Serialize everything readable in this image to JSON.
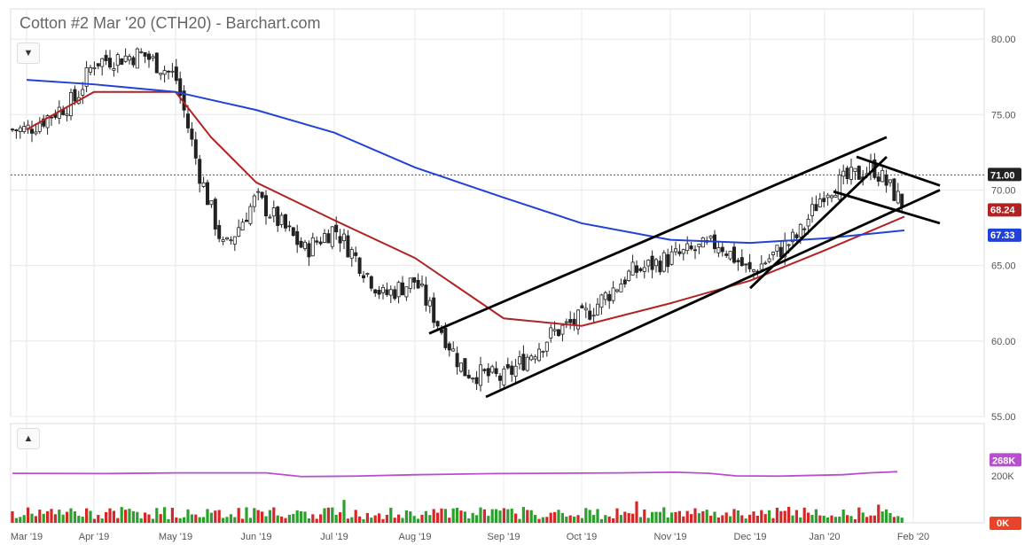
{
  "title": "Cotton #2 Mar '20 (CTH20) - Barchart.com",
  "colors": {
    "up": "#2ca02c",
    "down": "#d62728",
    "wick": "#222222",
    "ma_fast": "#b22222",
    "ma_slow": "#2142d6",
    "volume_avg": "#b84ecf",
    "grid": "#e8e8e8",
    "axis_text": "#555555"
  },
  "icons": {
    "main_toggle": "chevron-down-icon",
    "volume_toggle": "chevron-up-icon"
  },
  "chart_data": {
    "type": "candlestick",
    "symbol": "CTH20",
    "x_axis": {
      "labels": [
        "Mar '19",
        "Apr '19",
        "May '19",
        "Jun '19",
        "Jul '19",
        "Aug '19",
        "Sep '19",
        "Oct '19",
        "Nov '19",
        "Dec '19",
        "Jan '20",
        "Feb '20"
      ]
    },
    "y_axis": {
      "ticks": [
        "80.00",
        "75.00",
        "70.00",
        "65.00",
        "60.00",
        "55.00"
      ],
      "range": [
        55,
        82
      ]
    },
    "last_price": {
      "value": "71.00"
    },
    "price_key_points": [
      [
        "Mar '19",
        74.0
      ],
      [
        "Mar '19",
        76.0
      ],
      [
        "Apr '19",
        78.5
      ],
      [
        "Apr '19",
        79.0
      ],
      [
        "May '19",
        77.5
      ],
      [
        "May '19",
        71.0
      ],
      [
        "May '19",
        66.0
      ],
      [
        "Jun '19",
        69.5
      ],
      [
        "Jun '19",
        66.0
      ],
      [
        "Jul '19",
        67.5
      ],
      [
        "Jul '19",
        63.0
      ],
      [
        "Aug '19",
        64.0
      ],
      [
        "Aug '19",
        58.0
      ],
      [
        "Sep '19",
        57.5
      ],
      [
        "Sep '19",
        60.5
      ],
      [
        "Oct '19",
        61.5
      ],
      [
        "Oct '19",
        64.5
      ],
      [
        "Nov '19",
        65.5
      ],
      [
        "Nov '19",
        66.5
      ],
      [
        "Dec '19",
        64.5
      ],
      [
        "Dec '19",
        67.0
      ],
      [
        "Jan '20",
        70.0
      ],
      [
        "Jan '20",
        71.5
      ],
      [
        "Feb '20",
        68.2
      ]
    ],
    "series": [
      {
        "label": "68.24",
        "color": "#b22222",
        "points": [
          [
            "Mar '19",
            74.0
          ],
          [
            "Apr '19",
            76.5
          ],
          [
            "May '19",
            76.5
          ],
          [
            "May '19",
            73.5
          ],
          [
            "Jun '19",
            70.5
          ],
          [
            "Jul '19",
            68.0
          ],
          [
            "Aug '19",
            65.5
          ],
          [
            "Sep '19",
            61.5
          ],
          [
            "Oct '19",
            61.0
          ],
          [
            "Nov '19",
            62.5
          ],
          [
            "Dec '19",
            64.0
          ],
          [
            "Jan '20",
            66.0
          ],
          [
            "Feb '20",
            68.24
          ]
        ]
      },
      {
        "label": "67.33",
        "color": "#2142d6",
        "points": [
          [
            "Mar '19",
            77.3
          ],
          [
            "Apr '19",
            77.0
          ],
          [
            "May '19",
            76.5
          ],
          [
            "Jun '19",
            75.3
          ],
          [
            "Jul '19",
            73.8
          ],
          [
            "Aug '19",
            71.5
          ],
          [
            "Sep '19",
            69.5
          ],
          [
            "Oct '19",
            67.8
          ],
          [
            "Nov '19",
            66.7
          ],
          [
            "Dec '19",
            66.5
          ],
          [
            "Jan '20",
            66.8
          ],
          [
            "Feb '20",
            67.33
          ]
        ]
      }
    ],
    "trendlines": [
      [
        [
          "Aug '19",
          60.5
        ],
        [
          "Jan '20",
          73.5
        ]
      ],
      [
        [
          "Sep '19",
          56.3
        ],
        [
          "Feb '20",
          70.0
        ]
      ],
      [
        [
          "Dec '19",
          63.5
        ],
        [
          "Jan '20",
          72.2
        ]
      ],
      [
        [
          "Jan '20",
          72.2
        ],
        [
          "Feb '20",
          70.3
        ]
      ],
      [
        [
          "Jan '20",
          69.9
        ],
        [
          "Feb '20",
          67.8
        ]
      ]
    ],
    "volume": {
      "axis_labels": [
        "200K"
      ],
      "average_label": "268K",
      "current_label": "0K"
    }
  }
}
